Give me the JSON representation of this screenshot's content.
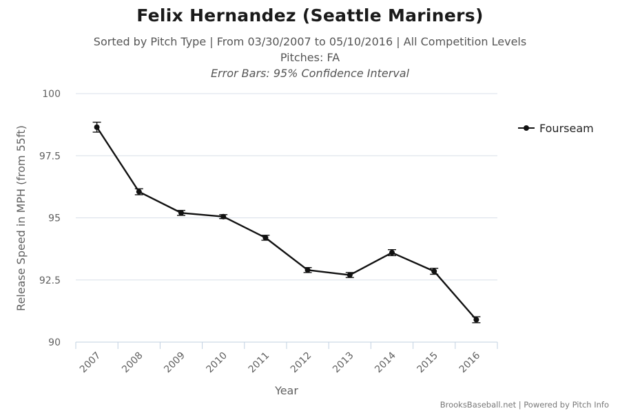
{
  "header": {
    "title": "Felix Hernandez (Seattle Mariners)",
    "subtitle": "Sorted by Pitch Type | From 03/30/2007 to 05/10/2016 | All Competition Levels",
    "pitches": "Pitches: FA",
    "error_bars": "Error Bars: 95% Confidence Interval"
  },
  "credits": "BrooksBaseball.net | Powered by Pitch Info",
  "colors": {
    "series": "#111111",
    "grid": "#d8dfe8",
    "axis": "#c0d0e0",
    "text": "#606060"
  },
  "chart_data": {
    "type": "line",
    "title": "Felix Hernandez (Seattle Mariners)",
    "xlabel": "Year",
    "ylabel": "Release Speed in MPH (from 55ft)",
    "categories": [
      "2007",
      "2008",
      "2009",
      "2010",
      "2011",
      "2012",
      "2013",
      "2014",
      "2015",
      "2016"
    ],
    "ylim": [
      90,
      100
    ],
    "yticks": [
      "90",
      "92.5",
      "95",
      "97.5",
      "100"
    ],
    "grid": true,
    "legend_position": "right",
    "series": [
      {
        "name": "Fourseam",
        "values": [
          98.65,
          96.05,
          95.2,
          95.05,
          94.2,
          92.9,
          92.7,
          93.6,
          92.85,
          90.9
        ],
        "error_low": [
          98.45,
          95.93,
          95.1,
          94.97,
          94.1,
          92.8,
          92.6,
          93.48,
          92.73,
          90.78
        ],
        "error_high": [
          98.85,
          96.17,
          95.3,
          95.13,
          94.3,
          93.0,
          92.8,
          93.72,
          92.97,
          91.02
        ]
      }
    ]
  }
}
